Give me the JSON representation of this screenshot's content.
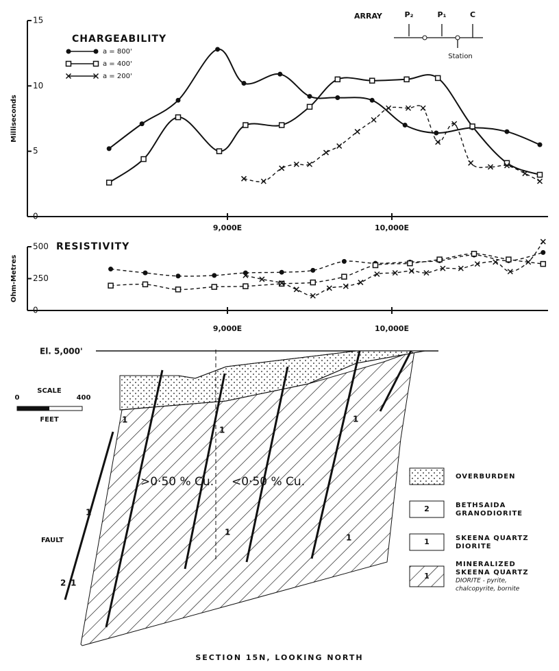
{
  "chart_data": [
    {
      "type": "line",
      "title": "CHARGEABILITY",
      "y_label": "Milliseconds",
      "xlim": [
        7950,
        10950
      ],
      "ylim": [
        0,
        15
      ],
      "yticks": [
        0,
        5,
        10,
        15
      ],
      "xticks": [
        {
          "value": 9000,
          "label": "9,000E"
        },
        {
          "value": 10000,
          "label": "10,000E"
        }
      ],
      "series": [
        {
          "name": "a = 800'",
          "color": "#111111",
          "marker": "circle",
          "line_style": "solid",
          "x": [
            8280,
            8480,
            8700,
            8940,
            9100,
            9320,
            9500,
            9670,
            9880,
            10080,
            10270,
            10490,
            10700,
            10900
          ],
          "values": [
            5.2,
            7.1,
            8.9,
            12.8,
            10.2,
            10.9,
            9.2,
            9.1,
            8.9,
            7.0,
            6.4,
            6.8,
            6.5,
            5.5
          ]
        },
        {
          "name": "a = 400'",
          "color": "#111111",
          "marker": "square",
          "line_style": "solid",
          "x": [
            8280,
            8490,
            8700,
            8950,
            9110,
            9330,
            9500,
            9670,
            9880,
            10090,
            10280,
            10490,
            10700,
            10900
          ],
          "values": [
            2.6,
            4.4,
            7.6,
            5.0,
            7.0,
            7.0,
            8.4,
            10.5,
            10.4,
            10.5,
            10.6,
            6.9,
            4.1,
            3.2
          ]
        },
        {
          "name": "a = 200'",
          "color": "#111111",
          "marker": "x",
          "line_style": "dashed",
          "x": [
            9100,
            9220,
            9330,
            9420,
            9500,
            9600,
            9680,
            9790,
            9890,
            9980,
            10100,
            10190,
            10280,
            10380,
            10480,
            10600,
            10700,
            10810,
            10900
          ],
          "values": [
            2.9,
            2.7,
            3.7,
            4.0,
            4.0,
            4.9,
            5.4,
            6.5,
            7.4,
            8.3,
            8.3,
            8.3,
            5.7,
            7.1,
            4.1,
            3.8,
            3.9,
            3.3,
            2.7
          ]
        }
      ]
    },
    {
      "type": "line",
      "title": "RESISTIVITY",
      "y_label": "Ohm-Metres",
      "xlim": [
        7950,
        10950
      ],
      "ylim": [
        0,
        500
      ],
      "yticks": [
        0,
        250,
        500
      ],
      "xticks": [
        {
          "value": 9000,
          "label": "9,000E"
        },
        {
          "value": 10000,
          "label": "10,000E"
        }
      ],
      "series": [
        {
          "color": "#111111",
          "marker": "circle",
          "line_style": "dashed",
          "x": [
            8290,
            8500,
            8700,
            8920,
            9110,
            9330,
            9520,
            9710,
            9900,
            10110,
            10290,
            10500,
            10710,
            10920
          ],
          "values": [
            325,
            295,
            270,
            275,
            295,
            300,
            315,
            385,
            370,
            380,
            390,
            435,
            390,
            455
          ]
        },
        {
          "color": "#111111",
          "marker": "square",
          "line_style": "dashed",
          "x": [
            8290,
            8500,
            8700,
            8920,
            9110,
            9330,
            9520,
            9710,
            9900,
            10110,
            10290,
            10500,
            10710,
            10920
          ],
          "values": [
            195,
            205,
            165,
            185,
            190,
            210,
            220,
            265,
            355,
            370,
            400,
            445,
            400,
            365
          ]
        },
        {
          "color": "#111111",
          "marker": "x",
          "line_style": "dashed",
          "x": [
            9110,
            9210,
            9330,
            9420,
            9520,
            9620,
            9720,
            9810,
            9910,
            10020,
            10120,
            10210,
            10310,
            10420,
            10520,
            10630,
            10720,
            10830,
            10920
          ],
          "values": [
            275,
            245,
            215,
            165,
            115,
            175,
            190,
            220,
            285,
            295,
            310,
            295,
            330,
            330,
            365,
            380,
            305,
            380,
            540
          ]
        }
      ]
    }
  ],
  "array": {
    "title": "ARRAY",
    "electrodes": [
      "P₂",
      "P₁",
      "C"
    ],
    "marker": "Station"
  },
  "section": {
    "elevation": "El. 5,000'",
    "scale": {
      "title": "SCALE",
      "start": "0",
      "end": "400",
      "unit": "FEET"
    },
    "zones": [
      ">0·50 % Cu.",
      "<0·50 % Cu."
    ],
    "fault": "FAULT",
    "unit_labels": [
      "2",
      "1",
      "1",
      "1",
      "1",
      "1",
      "1",
      "1"
    ],
    "legend": [
      {
        "box": "",
        "lines": [
          "OVERBURDEN"
        ]
      },
      {
        "box": "2",
        "lines": [
          "BETHSAIDA",
          "GRANODIORITE"
        ]
      },
      {
        "box": "1",
        "lines": [
          "SKEENA QUARTZ",
          "DIORITE"
        ]
      },
      {
        "box": "1",
        "lines": [
          "MINERALIZED",
          "SKEENA QUARTZ",
          "DIORITE - pyrite,",
          "chalcopyrite, bornite"
        ]
      }
    ],
    "caption": "SECTION 15N, LOOKING NORTH"
  }
}
